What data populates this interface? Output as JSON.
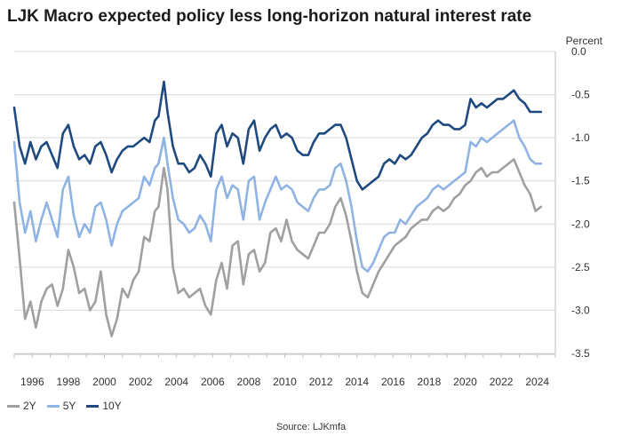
{
  "title": "LJK Macro expected policy less long-horizon natural interest rate",
  "unit_label": "Percent",
  "source": "Source: LJKmfa",
  "chart_data": {
    "type": "line",
    "title": "LJK Macro expected policy less long-horizon natural interest rate",
    "ylabel": "Percent",
    "xlim": [
      1995.0,
      2025.0
    ],
    "ylim": [
      -3.5,
      0.0
    ],
    "y_ticks": [
      0.0,
      -0.5,
      -1.0,
      -1.5,
      -2.0,
      -2.5,
      -3.0,
      -3.5
    ],
    "y_tick_labels": [
      "0.0",
      "-0.5",
      "-1.0",
      "-1.5",
      "-2.0",
      "-2.5",
      "-3.0",
      "-3.5"
    ],
    "x_ticks": [
      1996,
      1998,
      2000,
      2002,
      2004,
      2006,
      2008,
      2010,
      2012,
      2014,
      2016,
      2018,
      2020,
      2022,
      2024
    ],
    "x_tick_labels": [
      "1996",
      "1998",
      "2000",
      "2002",
      "2004",
      "2006",
      "2008",
      "2010",
      "2012",
      "2014",
      "2016",
      "2018",
      "2020",
      "2022",
      "2024"
    ],
    "grid": true,
    "legend_position": "bottom-left",
    "series": [
      {
        "name": "2Y",
        "color": "#a0a0a0",
        "x": [
          1995.0,
          1995.3,
          1995.6,
          1995.9,
          1996.2,
          1996.5,
          1996.8,
          1997.1,
          1997.4,
          1997.7,
          1998.0,
          1998.3,
          1998.6,
          1998.9,
          1999.2,
          1999.5,
          1999.8,
          2000.1,
          2000.4,
          2000.7,
          2001.0,
          2001.3,
          2001.6,
          2001.9,
          2002.2,
          2002.5,
          2002.8,
          2003.0,
          2003.3,
          2003.5,
          2003.8,
          2004.1,
          2004.4,
          2004.7,
          2005.0,
          2005.3,
          2005.6,
          2005.9,
          2006.2,
          2006.5,
          2006.8,
          2007.1,
          2007.4,
          2007.7,
          2008.0,
          2008.3,
          2008.6,
          2008.9,
          2009.2,
          2009.5,
          2009.8,
          2010.1,
          2010.4,
          2010.7,
          2011.0,
          2011.3,
          2011.6,
          2011.9,
          2012.2,
          2012.5,
          2012.8,
          2013.1,
          2013.4,
          2013.7,
          2014.0,
          2014.3,
          2014.6,
          2014.9,
          2015.2,
          2015.5,
          2015.8,
          2016.1,
          2016.4,
          2016.7,
          2017.0,
          2017.3,
          2017.6,
          2017.9,
          2018.2,
          2018.5,
          2018.8,
          2019.1,
          2019.4,
          2019.7,
          2020.0,
          2020.3,
          2020.6,
          2020.9,
          2021.2,
          2021.5,
          2021.8,
          2022.1,
          2022.4,
          2022.7,
          2023.0,
          2023.3,
          2023.6,
          2023.9,
          2024.2
        ],
        "values": [
          -1.75,
          -2.4,
          -3.1,
          -2.9,
          -3.2,
          -2.9,
          -2.75,
          -2.7,
          -2.95,
          -2.75,
          -2.3,
          -2.5,
          -2.8,
          -2.75,
          -3.0,
          -2.9,
          -2.55,
          -3.05,
          -3.3,
          -3.1,
          -2.75,
          -2.85,
          -2.65,
          -2.55,
          -2.15,
          -2.2,
          -1.85,
          -1.8,
          -1.35,
          -1.6,
          -2.5,
          -2.8,
          -2.75,
          -2.85,
          -2.8,
          -2.75,
          -2.95,
          -3.05,
          -2.65,
          -2.45,
          -2.75,
          -2.25,
          -2.2,
          -2.7,
          -2.35,
          -2.3,
          -2.55,
          -2.45,
          -2.1,
          -2.05,
          -2.2,
          -1.95,
          -2.2,
          -2.3,
          -2.35,
          -2.4,
          -2.25,
          -2.1,
          -2.1,
          -2.0,
          -1.8,
          -1.7,
          -1.9,
          -2.2,
          -2.55,
          -2.8,
          -2.85,
          -2.7,
          -2.55,
          -2.45,
          -2.35,
          -2.25,
          -2.2,
          -2.15,
          -2.05,
          -2.0,
          -1.95,
          -1.95,
          -1.85,
          -1.8,
          -1.85,
          -1.8,
          -1.7,
          -1.65,
          -1.55,
          -1.5,
          -1.4,
          -1.35,
          -1.45,
          -1.4,
          -1.4,
          -1.35,
          -1.3,
          -1.25,
          -1.4,
          -1.55,
          -1.65,
          -1.85,
          -1.8
        ]
      },
      {
        "name": "5Y",
        "color": "#8fb3e3",
        "x": [
          1995.0,
          1995.3,
          1995.6,
          1995.9,
          1996.2,
          1996.5,
          1996.8,
          1997.1,
          1997.4,
          1997.7,
          1998.0,
          1998.3,
          1998.6,
          1998.9,
          1999.2,
          1999.5,
          1999.8,
          2000.1,
          2000.4,
          2000.7,
          2001.0,
          2001.3,
          2001.6,
          2001.9,
          2002.2,
          2002.5,
          2002.8,
          2003.0,
          2003.3,
          2003.5,
          2003.8,
          2004.1,
          2004.4,
          2004.7,
          2005.0,
          2005.3,
          2005.6,
          2005.9,
          2006.2,
          2006.5,
          2006.8,
          2007.1,
          2007.4,
          2007.7,
          2008.0,
          2008.3,
          2008.6,
          2008.9,
          2009.2,
          2009.5,
          2009.8,
          2010.1,
          2010.4,
          2010.7,
          2011.0,
          2011.3,
          2011.6,
          2011.9,
          2012.2,
          2012.5,
          2012.8,
          2013.1,
          2013.4,
          2013.7,
          2014.0,
          2014.3,
          2014.6,
          2014.9,
          2015.2,
          2015.5,
          2015.8,
          2016.1,
          2016.4,
          2016.7,
          2017.0,
          2017.3,
          2017.6,
          2017.9,
          2018.2,
          2018.5,
          2018.8,
          2019.1,
          2019.4,
          2019.7,
          2020.0,
          2020.3,
          2020.6,
          2020.9,
          2021.2,
          2021.5,
          2021.8,
          2022.1,
          2022.4,
          2022.7,
          2023.0,
          2023.3,
          2023.6,
          2023.9,
          2024.2
        ],
        "values": [
          -1.05,
          -1.75,
          -2.1,
          -1.85,
          -2.2,
          -1.95,
          -1.75,
          -1.95,
          -2.15,
          -1.6,
          -1.45,
          -1.9,
          -2.15,
          -2.0,
          -2.1,
          -1.8,
          -1.75,
          -1.95,
          -2.25,
          -2.0,
          -1.85,
          -1.8,
          -1.75,
          -1.7,
          -1.45,
          -1.55,
          -1.35,
          -1.3,
          -1.0,
          -1.3,
          -1.7,
          -1.95,
          -2.0,
          -2.1,
          -2.05,
          -1.9,
          -2.0,
          -2.2,
          -1.6,
          -1.45,
          -1.7,
          -1.55,
          -1.6,
          -1.95,
          -1.5,
          -1.45,
          -1.95,
          -1.75,
          -1.6,
          -1.45,
          -1.6,
          -1.55,
          -1.6,
          -1.75,
          -1.8,
          -1.85,
          -1.7,
          -1.6,
          -1.6,
          -1.55,
          -1.35,
          -1.3,
          -1.5,
          -1.8,
          -2.2,
          -2.5,
          -2.55,
          -2.45,
          -2.3,
          -2.15,
          -2.1,
          -2.1,
          -1.95,
          -2.0,
          -1.9,
          -1.8,
          -1.75,
          -1.7,
          -1.6,
          -1.55,
          -1.6,
          -1.55,
          -1.5,
          -1.45,
          -1.4,
          -1.05,
          -1.1,
          -1.0,
          -1.05,
          -1.0,
          -0.95,
          -0.9,
          -0.85,
          -0.8,
          -1.0,
          -1.1,
          -1.25,
          -1.3,
          -1.3
        ]
      },
      {
        "name": "10Y",
        "color": "#1f4a80",
        "x": [
          1995.0,
          1995.3,
          1995.6,
          1995.9,
          1996.2,
          1996.5,
          1996.8,
          1997.1,
          1997.4,
          1997.7,
          1998.0,
          1998.3,
          1998.6,
          1998.9,
          1999.2,
          1999.5,
          1999.8,
          2000.1,
          2000.4,
          2000.7,
          2001.0,
          2001.3,
          2001.6,
          2001.9,
          2002.2,
          2002.5,
          2002.8,
          2003.0,
          2003.3,
          2003.5,
          2003.8,
          2004.1,
          2004.4,
          2004.7,
          2005.0,
          2005.3,
          2005.6,
          2005.9,
          2006.2,
          2006.5,
          2006.8,
          2007.1,
          2007.4,
          2007.7,
          2008.0,
          2008.3,
          2008.6,
          2008.9,
          2009.2,
          2009.5,
          2009.8,
          2010.1,
          2010.4,
          2010.7,
          2011.0,
          2011.3,
          2011.6,
          2011.9,
          2012.2,
          2012.5,
          2012.8,
          2013.1,
          2013.4,
          2013.7,
          2014.0,
          2014.3,
          2014.6,
          2014.9,
          2015.2,
          2015.5,
          2015.8,
          2016.1,
          2016.4,
          2016.7,
          2017.0,
          2017.3,
          2017.6,
          2017.9,
          2018.2,
          2018.5,
          2018.8,
          2019.1,
          2019.4,
          2019.7,
          2020.0,
          2020.3,
          2020.6,
          2020.9,
          2021.2,
          2021.5,
          2021.8,
          2022.1,
          2022.4,
          2022.7,
          2023.0,
          2023.3,
          2023.6,
          2023.9,
          2024.2
        ],
        "values": [
          -0.65,
          -1.1,
          -1.3,
          -1.05,
          -1.25,
          -1.1,
          -1.05,
          -1.2,
          -1.35,
          -0.95,
          -0.85,
          -1.1,
          -1.25,
          -1.2,
          -1.3,
          -1.1,
          -1.05,
          -1.2,
          -1.4,
          -1.25,
          -1.15,
          -1.1,
          -1.1,
          -1.05,
          -1.0,
          -1.05,
          -0.8,
          -0.75,
          -0.35,
          -0.7,
          -1.1,
          -1.3,
          -1.3,
          -1.4,
          -1.35,
          -1.2,
          -1.3,
          -1.45,
          -0.95,
          -0.85,
          -1.1,
          -0.95,
          -1.0,
          -1.3,
          -0.9,
          -0.8,
          -1.15,
          -1.0,
          -0.9,
          -0.85,
          -1.0,
          -0.95,
          -1.0,
          -1.15,
          -1.2,
          -1.2,
          -1.05,
          -0.95,
          -0.95,
          -0.9,
          -0.85,
          -0.85,
          -1.0,
          -1.25,
          -1.5,
          -1.6,
          -1.55,
          -1.5,
          -1.45,
          -1.3,
          -1.25,
          -1.3,
          -1.2,
          -1.25,
          -1.2,
          -1.1,
          -1.0,
          -0.95,
          -0.85,
          -0.8,
          -0.85,
          -0.85,
          -0.9,
          -0.9,
          -0.85,
          -0.55,
          -0.65,
          -0.6,
          -0.65,
          -0.6,
          -0.55,
          -0.55,
          -0.5,
          -0.45,
          -0.55,
          -0.6,
          -0.7,
          -0.7,
          -0.7
        ]
      }
    ]
  }
}
